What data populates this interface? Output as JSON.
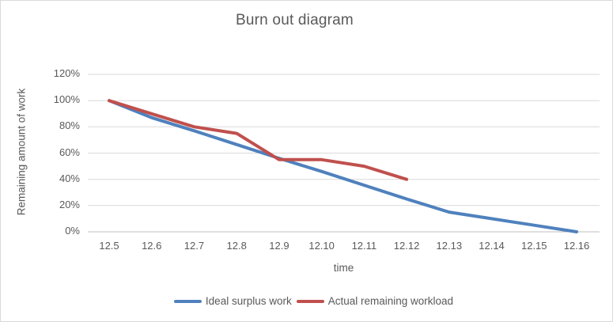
{
  "window": {
    "background": "#FFFFFF",
    "border_color": "#D9D9D9"
  },
  "chart_data": {
    "type": "line",
    "title": "Burn out diagram",
    "xlabel": "time",
    "ylabel": "Remaining amount of work",
    "categories": [
      "12.5",
      "12.6",
      "12.7",
      "12.8",
      "12.9",
      "12.10",
      "12.11",
      "12.12",
      "12.13",
      "12.14",
      "12.15",
      "12.16"
    ],
    "y_ticks": [
      "0%",
      "20%",
      "40%",
      "60%",
      "80%",
      "100%",
      "120%"
    ],
    "ylim": [
      0,
      120
    ],
    "y_step": 20,
    "grid": true,
    "legend_position": "bottom",
    "text_color": "#595959",
    "gridline_color": "#D9D9D9",
    "axis_line_color": "#BFBFBF",
    "series": [
      {
        "name": "Ideal surplus work",
        "color": "#4F81BD",
        "values": [
          100,
          87,
          77,
          66.5,
          56,
          46,
          35.5,
          25,
          15,
          10,
          5,
          0
        ]
      },
      {
        "name": "Actual remaining workload",
        "color": "#C0504D",
        "values": [
          100,
          90,
          80,
          75,
          55,
          55,
          50,
          40,
          null,
          null,
          null,
          null
        ]
      }
    ]
  }
}
